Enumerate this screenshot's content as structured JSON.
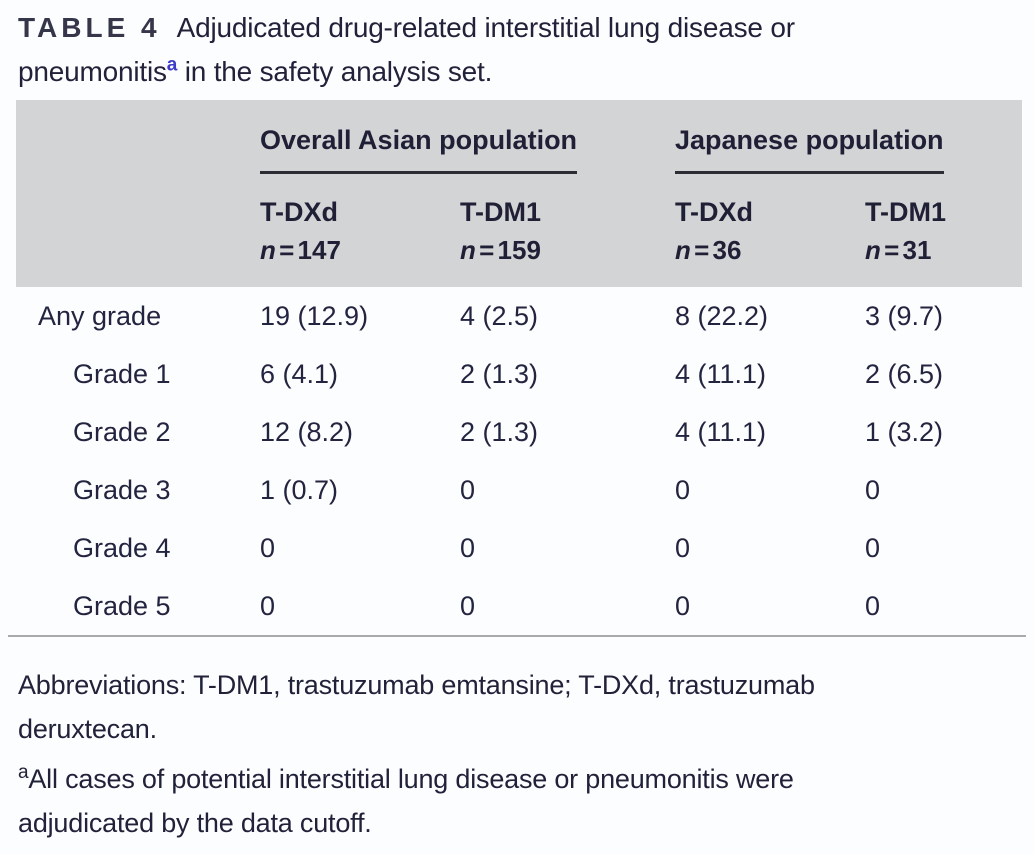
{
  "title": {
    "tag": "TABLE 4",
    "full_text": "Adjudicated drug-related interstitial lung disease or pneumonitisᵃ in the safety analysis set.",
    "line1": "Adjudicated drug-related interstitial lung disease or",
    "line2_before_sup": "pneumonitis",
    "footnote_marker": "a",
    "line2_after_sup": " in the safety analysis set."
  },
  "table": {
    "groups": [
      {
        "label": "Overall Asian population"
      },
      {
        "label": "Japanese population"
      }
    ],
    "columns": [
      {
        "name": "T-DXd",
        "n_label": "n",
        "n_value": " = 147"
      },
      {
        "name": "T-DM1",
        "n_label": "n",
        "n_value": " = 159"
      },
      {
        "name": "T-DXd",
        "n_label": "n",
        "n_value": " = 36"
      },
      {
        "name": "T-DM1",
        "n_label": "n",
        "n_value": " = 31"
      }
    ],
    "rows": [
      {
        "label": "Any grade",
        "values": [
          "19 (12.9)",
          "4 (2.5)",
          "8 (22.2)",
          "3 (9.7)"
        ]
      },
      {
        "label": "Grade 1",
        "values": [
          "6 (4.1)",
          "2 (1.3)",
          "4 (11.1)",
          "2 (6.5)"
        ]
      },
      {
        "label": "Grade 2",
        "values": [
          "12 (8.2)",
          "2 (1.3)",
          "4 (11.1)",
          "1 (3.2)"
        ]
      },
      {
        "label": "Grade 3",
        "values": [
          "1 (0.7)",
          "0",
          "0",
          "0"
        ]
      },
      {
        "label": "Grade 4",
        "values": [
          "0",
          "0",
          "0",
          "0"
        ]
      },
      {
        "label": "Grade 5",
        "values": [
          "0",
          "0",
          "0",
          "0"
        ]
      }
    ]
  },
  "footer": {
    "abbreviations_full": "Abbreviations: T-DM1, trastuzumab emtansine; T-DXd, trastuzumab deruxtecan.",
    "abbreviations_lines": [
      "Abbreviations: T-DM1, trastuzumab emtansine; T-DXd, trastuzumab",
      "deruxtecan."
    ],
    "footnote_marker": "a",
    "footnote_full": "All cases of potential interstitial lung disease or pneumonitis were adjudicated by the data cutoff.",
    "footnote_lines": [
      "All cases of potential interstitial lung disease or pneumonitis were",
      "adjudicated by the data cutoff."
    ]
  },
  "colors": {
    "page_bg": "#fcfdfe",
    "text": "#232440",
    "header_bg": "#d3d4d6",
    "group_underline": "#2b2c34",
    "bottom_rule": "#a8aaac",
    "marker_blue": "#3c3cc8"
  }
}
